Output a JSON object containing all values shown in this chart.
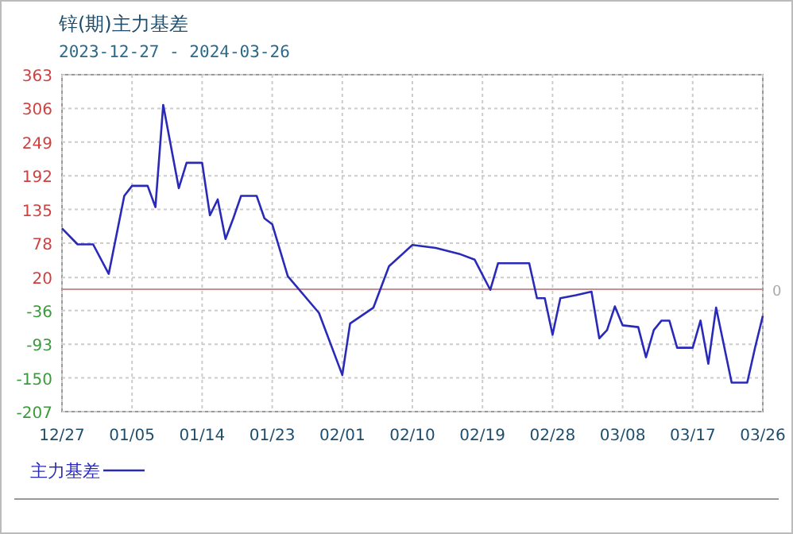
{
  "chart_data": {
    "type": "line",
    "title": "锌(期)主力基差",
    "subtitle": "2023-12-27 - 2024-03-26",
    "x": [
      "2023-12-27",
      "2023-12-29",
      "2023-12-31",
      "2024-01-02",
      "2024-01-04",
      "2024-01-05",
      "2024-01-07",
      "2024-01-08",
      "2024-01-09",
      "2024-01-11",
      "2024-01-12",
      "2024-01-14",
      "2024-01-15",
      "2024-01-16",
      "2024-01-17",
      "2024-01-18",
      "2024-01-19",
      "2024-01-21",
      "2024-01-22",
      "2024-01-23",
      "2024-01-25",
      "2024-01-29",
      "2024-02-01",
      "2024-02-02",
      "2024-02-05",
      "2024-02-07",
      "2024-02-10",
      "2024-02-13",
      "2024-02-16",
      "2024-02-18",
      "2024-02-20",
      "2024-02-21",
      "2024-02-23",
      "2024-02-25",
      "2024-02-26",
      "2024-02-27",
      "2024-02-28",
      "2024-02-29",
      "2024-03-02",
      "2024-03-04",
      "2024-03-05",
      "2024-03-06",
      "2024-03-07",
      "2024-03-08",
      "2024-03-10",
      "2024-03-11",
      "2024-03-12",
      "2024-03-13",
      "2024-03-14",
      "2024-03-15",
      "2024-03-17",
      "2024-03-18",
      "2024-03-19",
      "2024-03-20",
      "2024-03-22",
      "2024-03-24",
      "2024-03-25",
      "2024-03-26"
    ],
    "series": [
      {
        "name": "主力基差",
        "color": "#2a2ab8",
        "values": [
          103,
          76,
          76,
          26,
          158,
          175,
          175,
          139,
          312,
          171,
          214,
          214,
          125,
          152,
          85,
          120,
          158,
          158,
          120,
          110,
          22,
          -40,
          -145,
          -58,
          -31,
          39,
          75,
          70,
          60,
          50,
          -1,
          44,
          44,
          44,
          -15,
          -15,
          -77,
          -15,
          -10,
          -4,
          -83,
          -69,
          -29,
          -61,
          -64,
          -115,
          -69,
          -53,
          -53,
          -99,
          -99,
          -53,
          -126,
          -31,
          -158,
          -158,
          -99,
          -45
        ]
      }
    ],
    "xlim": [
      "2023-12-27",
      "2024-03-26"
    ],
    "xticks": [
      {
        "value": "2023-12-27",
        "label": "12/27"
      },
      {
        "value": "2024-01-05",
        "label": "01/05"
      },
      {
        "value": "2024-01-14",
        "label": "01/14"
      },
      {
        "value": "2024-01-23",
        "label": "01/23"
      },
      {
        "value": "2024-02-01",
        "label": "02/01"
      },
      {
        "value": "2024-02-10",
        "label": "02/10"
      },
      {
        "value": "2024-02-19",
        "label": "02/19"
      },
      {
        "value": "2024-02-28",
        "label": "02/28"
      },
      {
        "value": "2024-03-08",
        "label": "03/08"
      },
      {
        "value": "2024-03-17",
        "label": "03/17"
      },
      {
        "value": "2024-03-26",
        "label": "03/26"
      }
    ],
    "ylim": [
      -207,
      363
    ],
    "yticks": [
      363,
      306,
      249,
      192,
      135,
      78,
      20,
      -36,
      -93,
      -150,
      -207
    ],
    "ref_lines": [
      {
        "axis": "y",
        "value": 0,
        "label": "0",
        "color": "#c89090"
      }
    ],
    "grid": true,
    "legend": "bottom left",
    "line_style": "solid",
    "marker": "none"
  }
}
